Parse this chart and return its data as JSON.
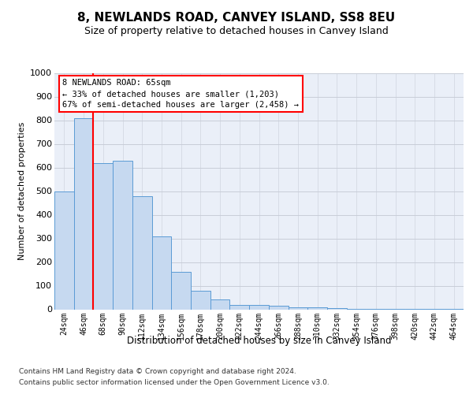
{
  "title": "8, NEWLANDS ROAD, CANVEY ISLAND, SS8 8EU",
  "subtitle": "Size of property relative to detached houses in Canvey Island",
  "xlabel": "Distribution of detached houses by size in Canvey Island",
  "ylabel": "Number of detached properties",
  "footnote1": "Contains HM Land Registry data © Crown copyright and database right 2024.",
  "footnote2": "Contains public sector information licensed under the Open Government Licence v3.0.",
  "annotation_line0": "8 NEWLANDS ROAD: 65sqm",
  "annotation_line1": "← 33% of detached houses are smaller (1,203)",
  "annotation_line2": "67% of semi-detached houses are larger (2,458) →",
  "bar_labels": [
    "24sqm",
    "46sqm",
    "68sqm",
    "90sqm",
    "112sqm",
    "134sqm",
    "156sqm",
    "178sqm",
    "200sqm",
    "222sqm",
    "244sqm",
    "266sqm",
    "288sqm",
    "310sqm",
    "332sqm",
    "354sqm",
    "376sqm",
    "398sqm",
    "420sqm",
    "442sqm",
    "464sqm"
  ],
  "bar_values": [
    500,
    810,
    620,
    630,
    480,
    310,
    160,
    80,
    42,
    20,
    20,
    15,
    10,
    8,
    5,
    3,
    2,
    2,
    1,
    1,
    1
  ],
  "bar_color": "#c6d9f0",
  "bar_edge_color": "#5b9bd5",
  "vline_x": 1.5,
  "vline_color": "red",
  "ylim_max": 1000,
  "yticks": [
    0,
    100,
    200,
    300,
    400,
    500,
    600,
    700,
    800,
    900,
    1000
  ],
  "grid_color": "#c8cdd8",
  "background_color": "#eaeff8",
  "title_fontsize": 11,
  "subtitle_fontsize": 9,
  "ylabel_fontsize": 8,
  "xlabel_fontsize": 8.5,
  "ytick_fontsize": 8,
  "xtick_fontsize": 7,
  "footnote_fontsize": 6.5,
  "ann_fontsize": 7.5
}
